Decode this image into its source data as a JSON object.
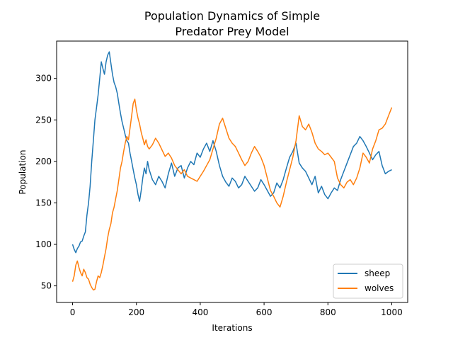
{
  "chart_data": {
    "type": "line",
    "title_line1": "Population Dynamics of Simple",
    "title_line2": "Predator Prey Model",
    "xlabel": "Iterations",
    "ylabel": "Population",
    "xlim": [
      -50,
      1050
    ],
    "ylim": [
      30,
      345
    ],
    "xticks": [
      0,
      200,
      400,
      600,
      800,
      1000
    ],
    "yticks": [
      50,
      100,
      150,
      200,
      250,
      300
    ],
    "legend_position": "lower-right",
    "grid": false,
    "series": [
      {
        "name": "sheep",
        "color": "#1f77b4",
        "points": [
          [
            0,
            100
          ],
          [
            5,
            94
          ],
          [
            10,
            90
          ],
          [
            15,
            95
          ],
          [
            20,
            98
          ],
          [
            25,
            103
          ],
          [
            30,
            104
          ],
          [
            35,
            110
          ],
          [
            40,
            115
          ],
          [
            45,
            135
          ],
          [
            50,
            150
          ],
          [
            55,
            170
          ],
          [
            60,
            200
          ],
          [
            65,
            225
          ],
          [
            70,
            250
          ],
          [
            75,
            265
          ],
          [
            80,
            280
          ],
          [
            85,
            300
          ],
          [
            90,
            320
          ],
          [
            95,
            312
          ],
          [
            100,
            305
          ],
          [
            105,
            320
          ],
          [
            110,
            328
          ],
          [
            115,
            332
          ],
          [
            120,
            318
          ],
          [
            125,
            305
          ],
          [
            130,
            295
          ],
          [
            135,
            290
          ],
          [
            140,
            282
          ],
          [
            145,
            270
          ],
          [
            150,
            258
          ],
          [
            155,
            248
          ],
          [
            160,
            240
          ],
          [
            165,
            232
          ],
          [
            170,
            225
          ],
          [
            175,
            222
          ],
          [
            180,
            210
          ],
          [
            185,
            200
          ],
          [
            190,
            190
          ],
          [
            195,
            180
          ],
          [
            200,
            172
          ],
          [
            205,
            160
          ],
          [
            210,
            152
          ],
          [
            215,
            165
          ],
          [
            220,
            180
          ],
          [
            225,
            192
          ],
          [
            230,
            185
          ],
          [
            235,
            200
          ],
          [
            240,
            190
          ],
          [
            250,
            178
          ],
          [
            260,
            172
          ],
          [
            270,
            182
          ],
          [
            280,
            176
          ],
          [
            290,
            168
          ],
          [
            300,
            185
          ],
          [
            310,
            198
          ],
          [
            320,
            182
          ],
          [
            330,
            192
          ],
          [
            340,
            195
          ],
          [
            350,
            180
          ],
          [
            360,
            192
          ],
          [
            370,
            200
          ],
          [
            380,
            196
          ],
          [
            390,
            210
          ],
          [
            400,
            205
          ],
          [
            410,
            215
          ],
          [
            420,
            222
          ],
          [
            430,
            212
          ],
          [
            440,
            225
          ],
          [
            450,
            212
          ],
          [
            460,
            195
          ],
          [
            470,
            182
          ],
          [
            480,
            175
          ],
          [
            490,
            170
          ],
          [
            500,
            180
          ],
          [
            510,
            176
          ],
          [
            520,
            168
          ],
          [
            530,
            172
          ],
          [
            540,
            182
          ],
          [
            550,
            176
          ],
          [
            560,
            170
          ],
          [
            570,
            164
          ],
          [
            580,
            168
          ],
          [
            590,
            178
          ],
          [
            600,
            172
          ],
          [
            610,
            165
          ],
          [
            620,
            158
          ],
          [
            630,
            162
          ],
          [
            640,
            174
          ],
          [
            650,
            168
          ],
          [
            660,
            178
          ],
          [
            670,
            192
          ],
          [
            680,
            205
          ],
          [
            690,
            212
          ],
          [
            700,
            222
          ],
          [
            710,
            198
          ],
          [
            720,
            192
          ],
          [
            730,
            188
          ],
          [
            740,
            180
          ],
          [
            750,
            172
          ],
          [
            760,
            182
          ],
          [
            770,
            162
          ],
          [
            780,
            170
          ],
          [
            790,
            160
          ],
          [
            800,
            155
          ],
          [
            810,
            162
          ],
          [
            820,
            168
          ],
          [
            830,
            165
          ],
          [
            840,
            178
          ],
          [
            850,
            188
          ],
          [
            860,
            198
          ],
          [
            870,
            208
          ],
          [
            880,
            218
          ],
          [
            890,
            222
          ],
          [
            900,
            230
          ],
          [
            910,
            225
          ],
          [
            920,
            218
          ],
          [
            930,
            210
          ],
          [
            940,
            202
          ],
          [
            950,
            208
          ],
          [
            960,
            212
          ],
          [
            970,
            195
          ],
          [
            980,
            185
          ],
          [
            990,
            188
          ],
          [
            1000,
            190
          ]
        ]
      },
      {
        "name": "wolves",
        "color": "#ff7f0e",
        "points": [
          [
            0,
            55
          ],
          [
            5,
            62
          ],
          [
            10,
            75
          ],
          [
            15,
            80
          ],
          [
            20,
            72
          ],
          [
            25,
            66
          ],
          [
            30,
            62
          ],
          [
            35,
            70
          ],
          [
            40,
            66
          ],
          [
            45,
            60
          ],
          [
            50,
            58
          ],
          [
            55,
            52
          ],
          [
            60,
            48
          ],
          [
            65,
            45
          ],
          [
            70,
            46
          ],
          [
            75,
            55
          ],
          [
            80,
            62
          ],
          [
            85,
            60
          ],
          [
            90,
            66
          ],
          [
            95,
            75
          ],
          [
            100,
            85
          ],
          [
            105,
            95
          ],
          [
            110,
            108
          ],
          [
            115,
            118
          ],
          [
            120,
            125
          ],
          [
            125,
            138
          ],
          [
            130,
            145
          ],
          [
            135,
            155
          ],
          [
            140,
            165
          ],
          [
            145,
            178
          ],
          [
            150,
            192
          ],
          [
            155,
            200
          ],
          [
            160,
            212
          ],
          [
            165,
            222
          ],
          [
            170,
            230
          ],
          [
            175,
            226
          ],
          [
            180,
            240
          ],
          [
            185,
            255
          ],
          [
            190,
            270
          ],
          [
            195,
            275
          ],
          [
            200,
            262
          ],
          [
            205,
            252
          ],
          [
            210,
            245
          ],
          [
            215,
            235
          ],
          [
            220,
            228
          ],
          [
            225,
            220
          ],
          [
            230,
            226
          ],
          [
            235,
            218
          ],
          [
            240,
            215
          ],
          [
            250,
            220
          ],
          [
            260,
            228
          ],
          [
            270,
            222
          ],
          [
            280,
            214
          ],
          [
            290,
            206
          ],
          [
            300,
            210
          ],
          [
            310,
            204
          ],
          [
            320,
            195
          ],
          [
            330,
            190
          ],
          [
            340,
            185
          ],
          [
            350,
            190
          ],
          [
            360,
            182
          ],
          [
            370,
            180
          ],
          [
            380,
            178
          ],
          [
            390,
            176
          ],
          [
            400,
            182
          ],
          [
            410,
            188
          ],
          [
            420,
            195
          ],
          [
            430,
            202
          ],
          [
            440,
            215
          ],
          [
            450,
            228
          ],
          [
            460,
            245
          ],
          [
            470,
            252
          ],
          [
            480,
            240
          ],
          [
            490,
            228
          ],
          [
            500,
            222
          ],
          [
            510,
            218
          ],
          [
            520,
            210
          ],
          [
            530,
            202
          ],
          [
            540,
            195
          ],
          [
            550,
            200
          ],
          [
            560,
            210
          ],
          [
            570,
            218
          ],
          [
            580,
            212
          ],
          [
            590,
            205
          ],
          [
            600,
            195
          ],
          [
            610,
            180
          ],
          [
            620,
            165
          ],
          [
            630,
            158
          ],
          [
            640,
            150
          ],
          [
            650,
            145
          ],
          [
            660,
            158
          ],
          [
            670,
            175
          ],
          [
            680,
            190
          ],
          [
            690,
            205
          ],
          [
            700,
            225
          ],
          [
            710,
            255
          ],
          [
            720,
            242
          ],
          [
            730,
            238
          ],
          [
            740,
            245
          ],
          [
            750,
            235
          ],
          [
            760,
            222
          ],
          [
            770,
            215
          ],
          [
            780,
            212
          ],
          [
            790,
            208
          ],
          [
            800,
            210
          ],
          [
            810,
            205
          ],
          [
            820,
            200
          ],
          [
            830,
            180
          ],
          [
            840,
            172
          ],
          [
            850,
            168
          ],
          [
            860,
            175
          ],
          [
            870,
            178
          ],
          [
            880,
            172
          ],
          [
            890,
            180
          ],
          [
            900,
            192
          ],
          [
            910,
            210
          ],
          [
            920,
            205
          ],
          [
            930,
            198
          ],
          [
            940,
            215
          ],
          [
            950,
            225
          ],
          [
            960,
            238
          ],
          [
            970,
            240
          ],
          [
            980,
            245
          ],
          [
            990,
            255
          ],
          [
            1000,
            265
          ]
        ]
      }
    ]
  }
}
